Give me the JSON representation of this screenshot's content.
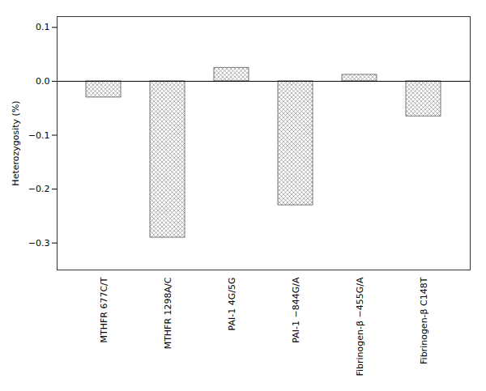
{
  "chart_data": {
    "type": "bar",
    "categories": [
      "MTHFR 677C/T",
      "MTHFR 1298A/C",
      "PAI-1 4G/5G",
      "PAI-1 −844G/A",
      "Fibrinogen-β −455G/A",
      "Fibrinogen-β C148T"
    ],
    "values": [
      -0.03,
      -0.29,
      0.025,
      -0.23,
      0.012,
      -0.065
    ],
    "color": "#ffffff",
    "ylabel": "Heterozygosity (%)",
    "ylim": [
      -0.35,
      0.12
    ],
    "yticks": [
      {
        "value": -0.3,
        "label": "−0.3"
      },
      {
        "value": -0.2,
        "label": "−0.2"
      },
      {
        "value": -0.1,
        "label": "−0.1"
      },
      {
        "value": 0.0,
        "label": "0.0"
      },
      0.1
    ]
  }
}
